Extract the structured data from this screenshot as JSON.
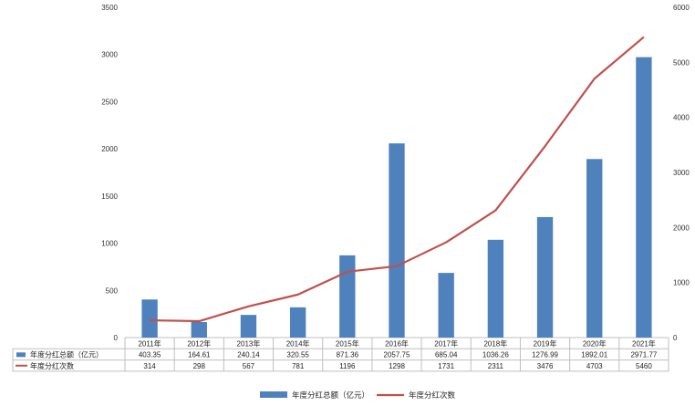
{
  "chart_data": {
    "type": "bar",
    "categories": [
      "2011年",
      "2012年",
      "2013年",
      "2014年",
      "2015年",
      "2016年",
      "2017年",
      "2018年",
      "2019年",
      "2020年",
      "2021年"
    ],
    "series": [
      {
        "name": "年度分红总额（亿元）",
        "kind": "bar",
        "axis": "left",
        "color": "#4f81bd",
        "values": [
          403.35,
          164.61,
          240.14,
          320.55,
          871.36,
          2057.75,
          685.04,
          1036.26,
          1276.99,
          1892.01,
          2971.77
        ],
        "labels": [
          "403.35",
          "164.61",
          "240.14",
          "320.55",
          "871.36",
          "2057.75",
          "685.04",
          "1036.26",
          "1276.99",
          "1892.01",
          "2971.77"
        ]
      },
      {
        "name": "年度分红次数",
        "kind": "line",
        "axis": "right",
        "color": "#c0504d",
        "values": [
          314,
          298,
          567,
          781,
          1196,
          1298,
          1731,
          2311,
          3476,
          4703,
          5460
        ],
        "labels": [
          "314",
          "298",
          "567",
          "781",
          "1196",
          "1298",
          "1731",
          "2311",
          "3476",
          "4703",
          "5460"
        ]
      }
    ],
    "ylim_left": [
      0,
      3500
    ],
    "ylim_right": [
      0,
      6000
    ],
    "yticks_left": [
      "0",
      "500",
      "1000",
      "1500",
      "2000",
      "2500",
      "3000",
      "3500"
    ],
    "yticks_right": [
      "0",
      "1000",
      "2000",
      "3000",
      "4000",
      "5000",
      "6000"
    ],
    "grid": false,
    "legend_position": "bottom",
    "data_table": true
  }
}
